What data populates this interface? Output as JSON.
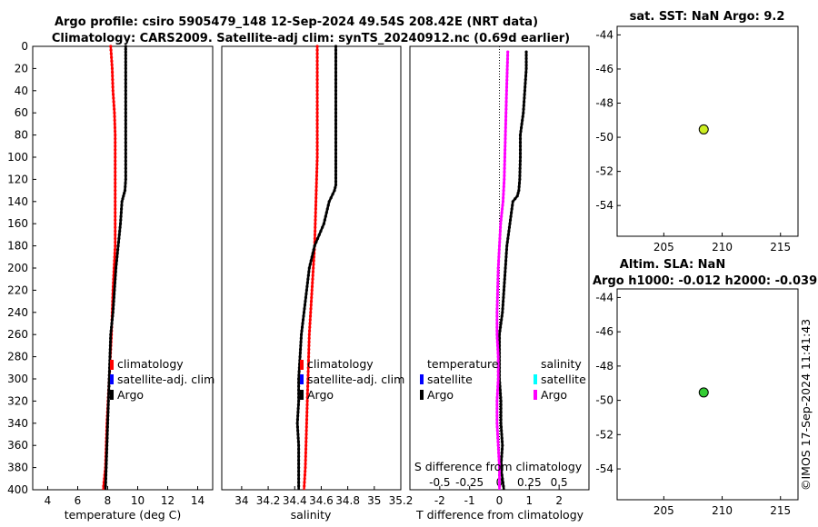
{
  "header": {
    "title_line1": "Argo profile: csiro 5905479_148 12-Sep-2024 49.54S 208.42E (NRT data)",
    "title_line2": "Climatology: CARS2009. Satellite-adj clim: synTS_20240912.nc (0.69d earlier)"
  },
  "watermark": "©IMOS 17-Sep-2024 11:41:43",
  "depth_ticks": [
    "0",
    "20",
    "40",
    "60",
    "80",
    "100",
    "120",
    "140",
    "160",
    "180",
    "200",
    "220",
    "240",
    "260",
    "280",
    "300",
    "320",
    "340",
    "360",
    "380",
    "400"
  ],
  "colors": {
    "climatology": "#ff0000",
    "satellite": "#0000ff",
    "argo": "#000000",
    "sat_salinity": "#00ffff",
    "argo_salinity": "#ff00ff",
    "sst_marker": "#ccee22",
    "sla_marker": "#33cc33"
  },
  "chart_data": [
    {
      "id": "temperature",
      "type": "line",
      "xlabel": "temperature (deg C)",
      "xticks": [
        "4",
        "6",
        "8",
        "10",
        "12",
        "14"
      ],
      "xtick_values": [
        4,
        6,
        8,
        10,
        12,
        14
      ],
      "xlim": [
        3,
        15
      ],
      "ylim": [
        0,
        400
      ],
      "legend": [
        "climatology",
        "satellite-adj. clim",
        "Argo"
      ],
      "series": [
        {
          "name": "climatology",
          "depth": [
            0,
            20,
            40,
            60,
            80,
            100,
            140,
            180,
            220,
            260,
            300,
            340,
            380,
            400
          ],
          "values": [
            8.2,
            8.3,
            8.35,
            8.45,
            8.5,
            8.5,
            8.5,
            8.5,
            8.35,
            8.25,
            8.1,
            7.95,
            7.85,
            7.7
          ]
        },
        {
          "name": "Argo",
          "depth": [
            0,
            5,
            20,
            60,
            100,
            120,
            130,
            135,
            140,
            160,
            180,
            200,
            220,
            240,
            260,
            280,
            300,
            320,
            340,
            360,
            380,
            400
          ],
          "values": [
            9.2,
            9.2,
            9.2,
            9.2,
            9.2,
            9.2,
            9.15,
            9.05,
            8.95,
            8.85,
            8.7,
            8.55,
            8.45,
            8.35,
            8.2,
            8.15,
            8.1,
            8.05,
            8.0,
            7.95,
            7.9,
            7.85
          ]
        }
      ]
    },
    {
      "id": "salinity",
      "type": "line",
      "xlabel": "salinity",
      "xticks": [
        "34",
        "34.2",
        "34.4",
        "34.6",
        "34.8",
        "35",
        "35.2"
      ],
      "xtick_values": [
        34,
        34.2,
        34.4,
        34.6,
        34.8,
        35,
        35.2
      ],
      "xlim": [
        33.85,
        35.2
      ],
      "ylim": [
        0,
        400
      ],
      "legend": [
        "climatology",
        "satellite-adj. clim",
        "Argo"
      ],
      "series": [
        {
          "name": "climatology",
          "depth": [
            0,
            60,
            100,
            140,
            180,
            220,
            260,
            300,
            340,
            380,
            400
          ],
          "values": [
            34.57,
            34.57,
            34.57,
            34.56,
            34.55,
            34.53,
            34.51,
            34.5,
            34.49,
            34.48,
            34.47
          ]
        },
        {
          "name": "Argo",
          "depth": [
            0,
            20,
            60,
            100,
            125,
            130,
            140,
            160,
            180,
            200,
            220,
            240,
            260,
            280,
            300,
            320,
            340,
            360,
            380,
            400
          ],
          "values": [
            34.71,
            34.71,
            34.71,
            34.71,
            34.71,
            34.7,
            34.66,
            34.62,
            34.55,
            34.51,
            34.49,
            34.47,
            34.45,
            34.44,
            34.43,
            34.43,
            34.42,
            34.43,
            34.43,
            34.43
          ]
        }
      ]
    },
    {
      "id": "difference",
      "type": "line",
      "xlabel": "T difference from climatology",
      "xticks": [
        "-2",
        "-1",
        "0",
        "1",
        "2"
      ],
      "xtick_values": [
        -2,
        -1,
        0,
        1,
        2
      ],
      "xlim": [
        -3,
        3
      ],
      "top_axis_label": "S difference from climatology",
      "top_ticks": [
        "-0.5",
        "-0.25",
        "0",
        "0.25",
        "0.5"
      ],
      "top_tick_values": [
        -0.5,
        -0.25,
        0,
        0.25,
        0.5
      ],
      "top_xlim": [
        -0.75,
        0.75
      ],
      "ylim": [
        0,
        400
      ],
      "legend_left_title": "temperature",
      "legend_left": [
        "satellite",
        "Argo"
      ],
      "legend_right_title": "salinity",
      "legend_right": [
        "satellite",
        "Argo"
      ],
      "series": [
        {
          "name": "T difference (Argo)",
          "depth": [
            5,
            20,
            40,
            60,
            80,
            100,
            120,
            130,
            135,
            140,
            160,
            180,
            200,
            220,
            240,
            260,
            280,
            300,
            320,
            340,
            360,
            380,
            400
          ],
          "values": [
            0.9,
            0.9,
            0.85,
            0.8,
            0.7,
            0.7,
            0.68,
            0.65,
            0.6,
            0.45,
            0.35,
            0.25,
            0.2,
            0.15,
            0.1,
            0.0,
            0.0,
            0.0,
            0.05,
            0.05,
            0.1,
            0.05,
            0.15
          ]
        },
        {
          "name": "S difference (Argo)",
          "depth": [
            5,
            40,
            80,
            120,
            140,
            160,
            200,
            240,
            260,
            280,
            300,
            320,
            340,
            360,
            380,
            400
          ],
          "values": [
            0.07,
            0.06,
            0.05,
            0.04,
            0.03,
            0.01,
            -0.01,
            -0.02,
            -0.02,
            -0.01,
            -0.01,
            -0.02,
            -0.02,
            -0.01,
            0.0,
            0.0
          ]
        }
      ]
    },
    {
      "id": "sst_map",
      "type": "scatter",
      "title": "sat. SST: NaN Argo: 9.2",
      "xticks": [
        "205",
        "210",
        "215"
      ],
      "xtick_values": [
        205,
        210,
        215
      ],
      "yticks": [
        "-44",
        "-46",
        "-48",
        "-50",
        "-52",
        "-54"
      ],
      "ytick_values": [
        -44,
        -46,
        -48,
        -50,
        -52,
        -54
      ],
      "xlim": [
        201,
        216.5
      ],
      "ylim": [
        -55.8,
        -43.5
      ],
      "points": [
        {
          "lon": 208.42,
          "lat": -49.54
        }
      ]
    },
    {
      "id": "sla_map",
      "type": "scatter",
      "title": "Altim. SLA: NaN",
      "subtitle": "Argo h1000: -0.012 h2000: -0.039",
      "xticks": [
        "205",
        "210",
        "215"
      ],
      "xtick_values": [
        205,
        210,
        215
      ],
      "yticks": [
        "-44",
        "-46",
        "-48",
        "-50",
        "-52",
        "-54"
      ],
      "ytick_values": [
        -44,
        -46,
        -48,
        -50,
        -52,
        -54
      ],
      "xlim": [
        201,
        216.5
      ],
      "ylim": [
        -55.8,
        -43.5
      ],
      "points": [
        {
          "lon": 208.42,
          "lat": -49.54
        }
      ]
    }
  ]
}
